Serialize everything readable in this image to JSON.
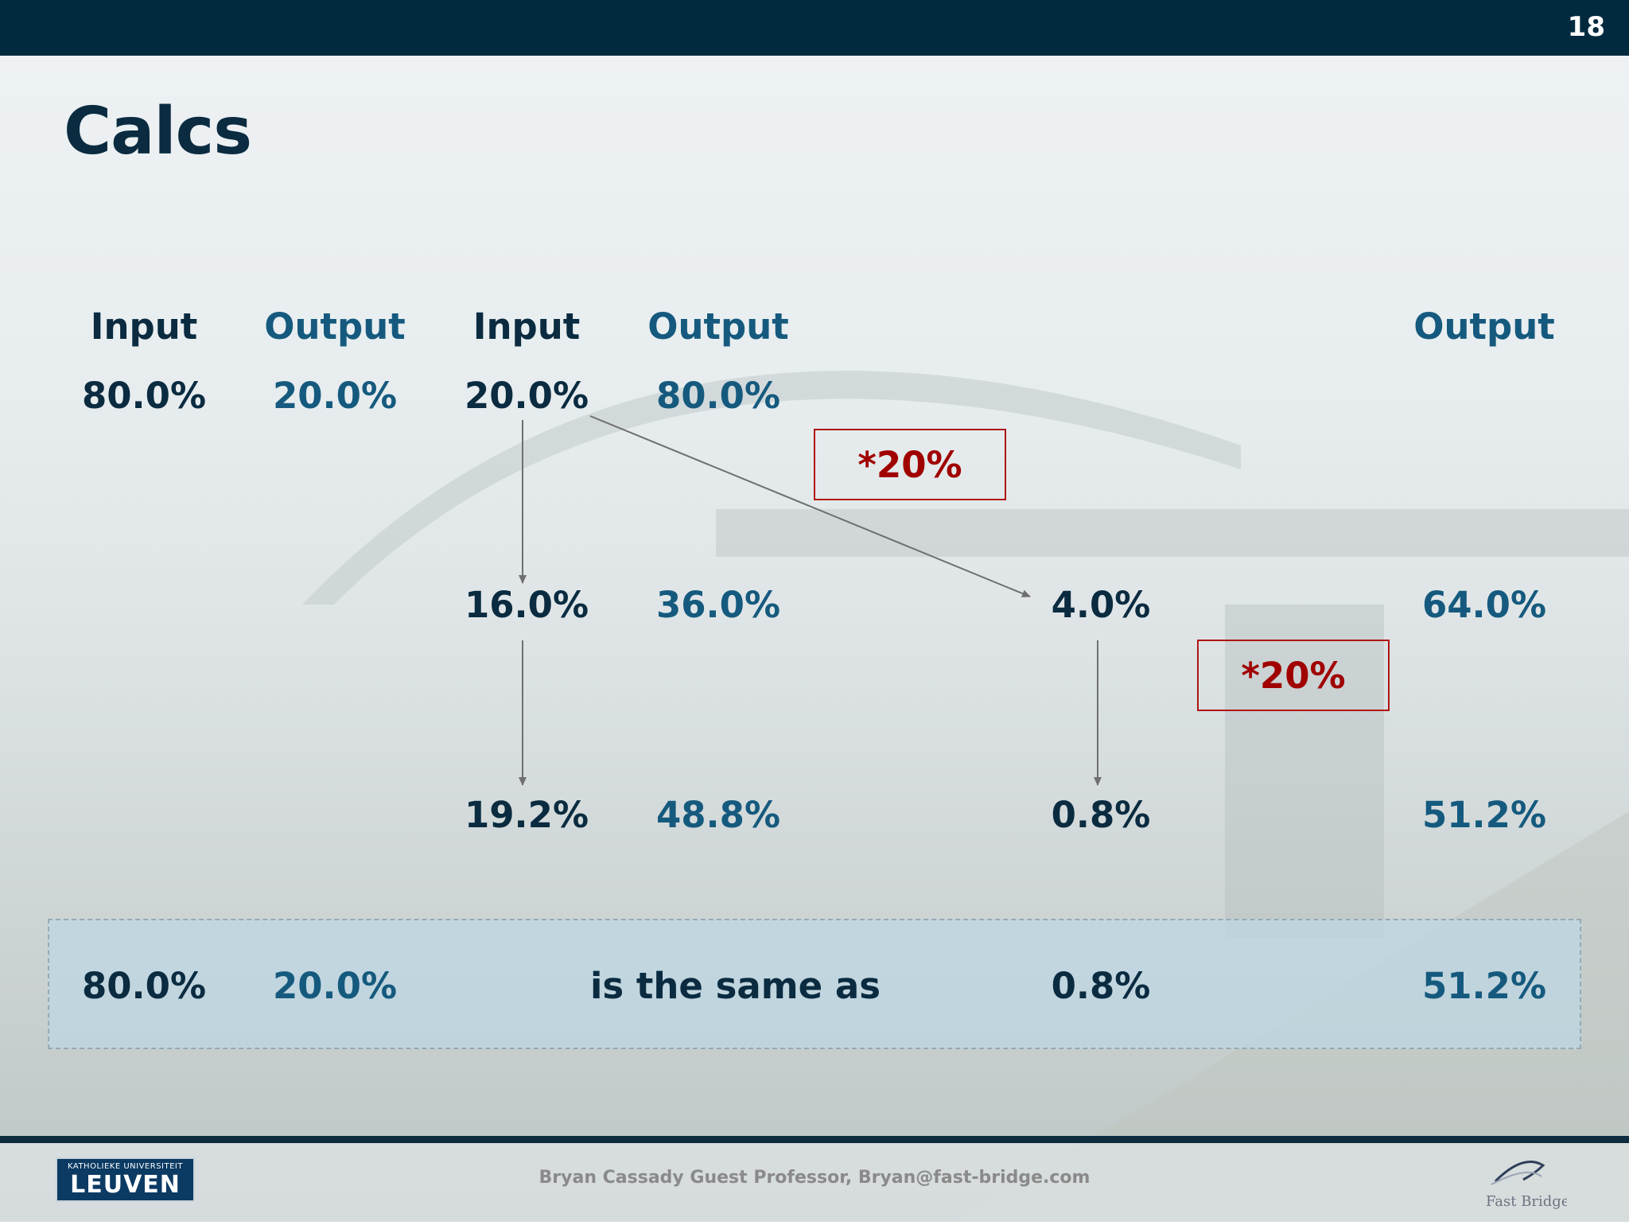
{
  "page_number": "18",
  "title": "Calcs",
  "headers": {
    "c1": "Input",
    "c2": "Output",
    "c3": "Input",
    "c4": "Output",
    "c7": "Output"
  },
  "row1": {
    "c1": "80.0%",
    "c2": "20.0%",
    "c3": "20.0%",
    "c4": "80.0%"
  },
  "row2": {
    "c3": "16.0%",
    "c4": "36.0%",
    "c6": "4.0%",
    "c7": "64.0%"
  },
  "row3": {
    "c3": "19.2%",
    "c4": "48.8%",
    "c6": "0.8%",
    "c7": "51.2%"
  },
  "multipliers": {
    "first": "*20%",
    "second": "*20%"
  },
  "summary": {
    "c1": "80.0%",
    "c2": "20.0%",
    "text": "is the same as",
    "c6": "0.8%",
    "c7": "51.2%"
  },
  "footer": {
    "text": "Bryan Cassady Guest Professor, Bryan@fast-bridge.com",
    "logo_left_small": "KATHOLIEKE UNIVERSITEIT",
    "logo_left_big": "LEUVEN",
    "logo_right": "Fast Bridge"
  },
  "colors": {
    "dark_text": "#0a2b40",
    "output_blue": "#155a7e",
    "multiplier_red": "#a00000",
    "top_bar": "#022a3e"
  }
}
